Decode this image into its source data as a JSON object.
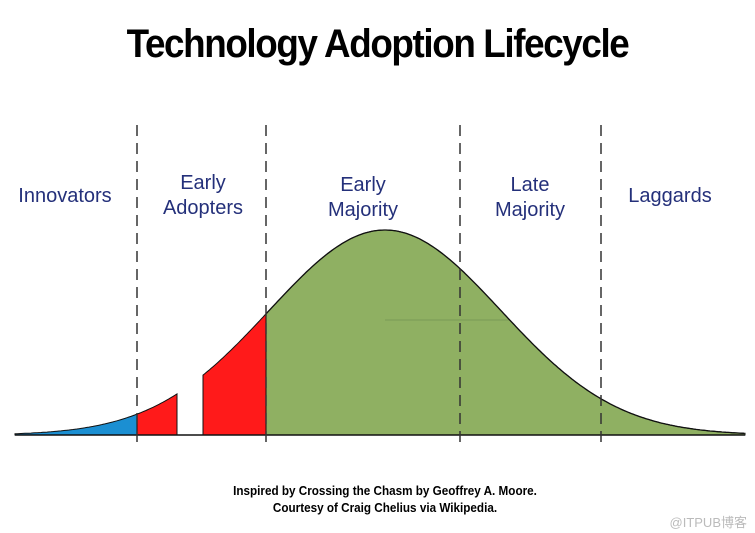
{
  "title": "Technology Adoption Lifecycle",
  "segments": [
    {
      "label_line1": "Innovators",
      "label_line2": "",
      "color": "#1b8fd2"
    },
    {
      "label_line1": "Early",
      "label_line2": "Adopters",
      "color": "#ff1a1a"
    },
    {
      "label_line1": "Early",
      "label_line2": "Majority",
      "color": "#8fb062"
    },
    {
      "label_line1": "Late",
      "label_line2": "Majority",
      "color": "#8fb062"
    },
    {
      "label_line1": "Laggards",
      "label_line2": "",
      "color": "#8fb062"
    }
  ],
  "caption_line1": "Inspired by Crossing the Chasm by Geoffrey A. Moore.",
  "caption_line2": "Courtesy of Craig Chelius via Wikipedia.",
  "watermark": "@ITPUB博客"
}
